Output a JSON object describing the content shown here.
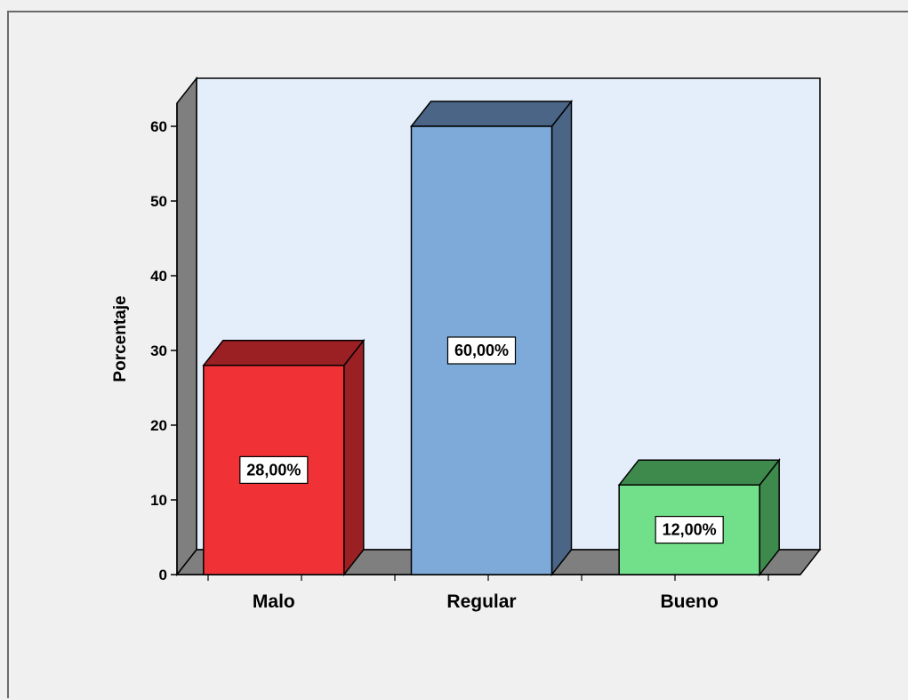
{
  "chart_data": {
    "type": "bar",
    "style": "3d",
    "categories": [
      "Malo",
      "Regular",
      "Bueno"
    ],
    "values": [
      28,
      60,
      12
    ],
    "data_labels": [
      "28,00%",
      "60,00%",
      "12,00%"
    ],
    "ylabel": "Porcentaje",
    "xlabel": "",
    "ylim": [
      0,
      60
    ],
    "yticks": [
      0,
      10,
      20,
      30,
      40,
      50,
      60
    ],
    "grid": false,
    "legend": "none",
    "colors": {
      "bars": [
        {
          "front": "#f03237",
          "top": "#9a2024",
          "side": "#9a2024"
        },
        {
          "front": "#7daad8",
          "top": "#4a6585",
          "side": "#4a6585"
        },
        {
          "front": "#72e08a",
          "top": "#3e8a4d",
          "side": "#3e8a4d"
        }
      ],
      "plot_background": "#e4eefa",
      "wall": "#7f7f7f",
      "floor": "#7f7f7f"
    }
  }
}
